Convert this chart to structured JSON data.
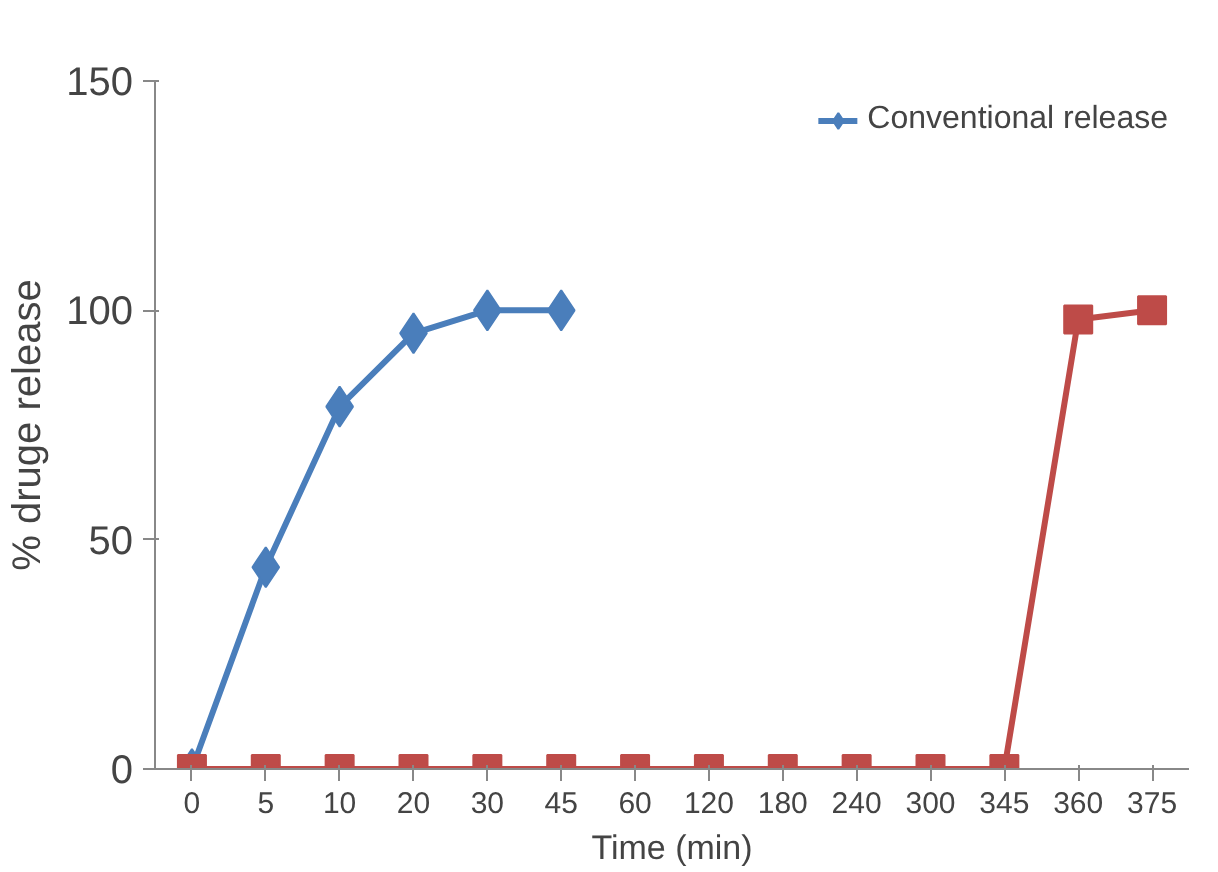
{
  "chart_data": {
    "type": "line",
    "xlabel": "Time (min)",
    "ylabel": "% druge release",
    "categories": [
      "0",
      "5",
      "10",
      "20",
      "30",
      "45",
      "60",
      "120",
      "180",
      "240",
      "300",
      "345",
      "360",
      "375"
    ],
    "ylim": [
      0,
      150
    ],
    "yticks": [
      0,
      50,
      100,
      150
    ],
    "grid": false,
    "legend": "top right",
    "series": [
      {
        "name": "Conventional release",
        "color": "#4a7ebb",
        "marker": "diamond",
        "values": [
          0,
          44,
          79,
          95,
          100,
          100,
          null,
          null,
          null,
          null,
          null,
          null,
          null,
          null
        ]
      },
      {
        "color": "#be4b48",
        "marker": "square",
        "values": [
          0,
          0,
          0,
          0,
          0,
          0,
          0,
          0,
          0,
          0,
          0,
          0,
          98,
          100
        ]
      }
    ]
  }
}
